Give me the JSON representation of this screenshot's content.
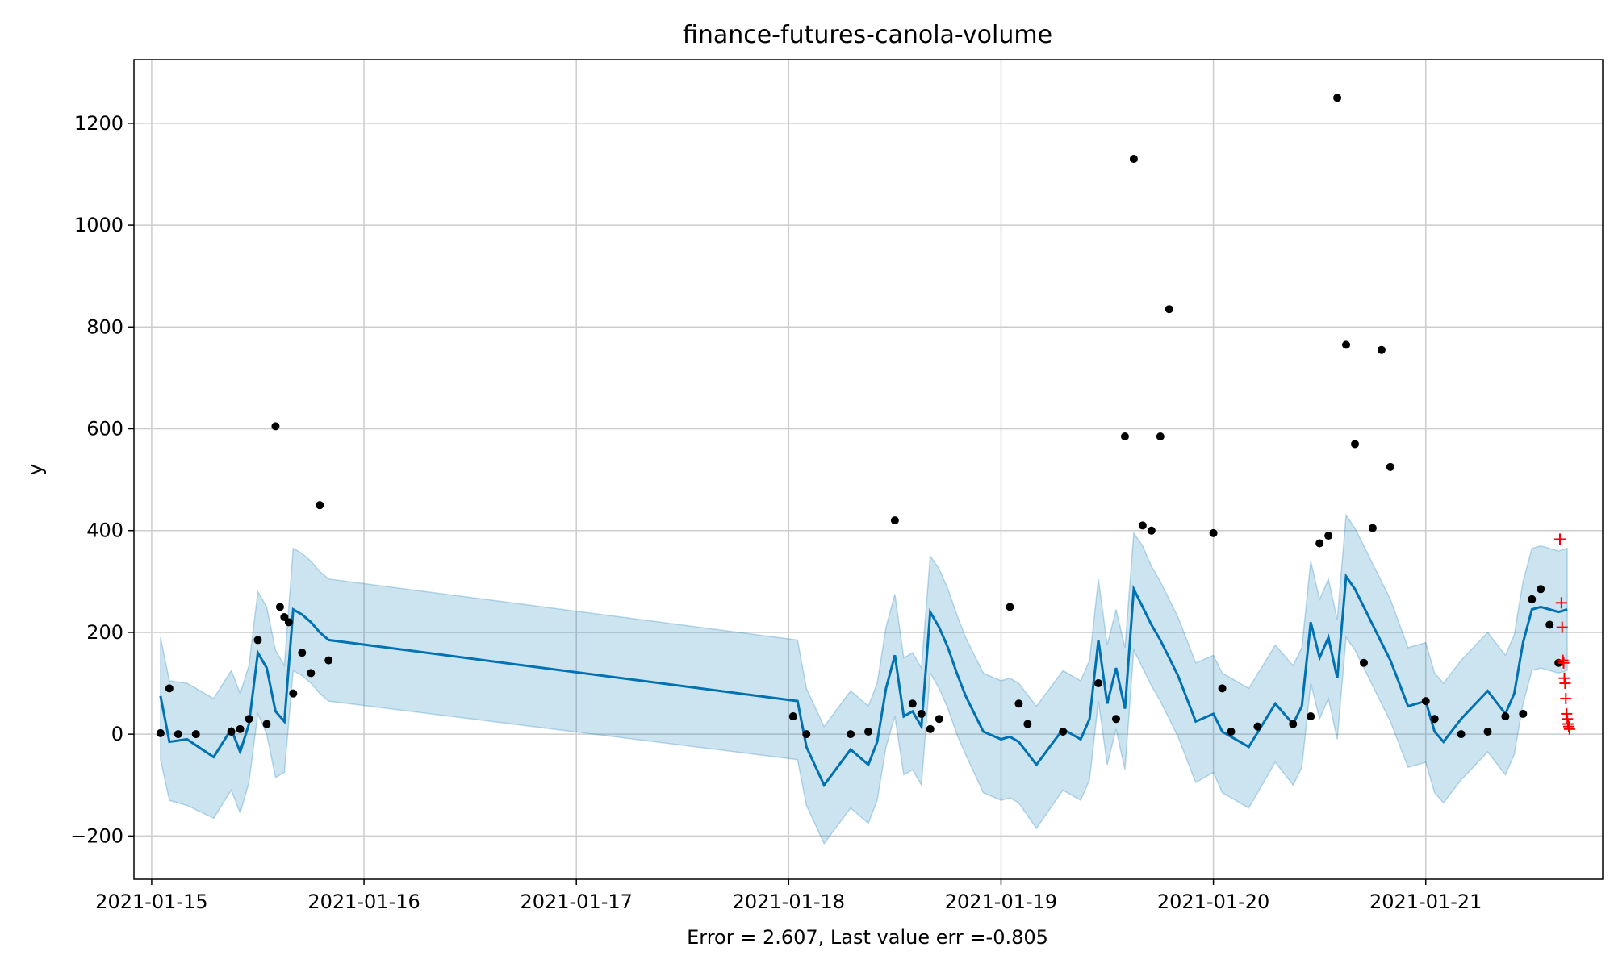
{
  "chart_data": {
    "type": "line",
    "title": "finance-futures-canola-volume",
    "xlabel": "Error = 2.607, Last value err =-0.805",
    "ylabel": "y",
    "xlim": [
      "2021-01-14T22:00",
      "2021-01-21T20:00"
    ],
    "ylim": [
      -285,
      1325
    ],
    "x_ticks": [
      "2021-01-15",
      "2021-01-16",
      "2021-01-17",
      "2021-01-18",
      "2021-01-19",
      "2021-01-20",
      "2021-01-21"
    ],
    "y_ticks": [
      -200,
      0,
      200,
      400,
      600,
      800,
      1000,
      1200
    ],
    "grid": true,
    "colors": {
      "forecast_line": "#0072b2",
      "uncertainty_band": "#0072b2",
      "observed": "#000000",
      "holdout": "#ff0000",
      "grid": "#cccccc"
    },
    "forecast": {
      "name": "",
      "x": [
        "2021-01-15T01:00",
        "2021-01-15T02:00",
        "2021-01-15T04:00",
        "2021-01-15T07:00",
        "2021-01-15T09:00",
        "2021-01-15T10:00",
        "2021-01-15T11:00",
        "2021-01-15T12:00",
        "2021-01-15T13:00",
        "2021-01-15T14:00",
        "2021-01-15T15:00",
        "2021-01-15T16:00",
        "2021-01-15T17:00",
        "2021-01-15T18:00",
        "2021-01-15T19:00",
        "2021-01-15T20:00",
        "2021-01-18T01:00",
        "2021-01-18T02:00",
        "2021-01-18T04:00",
        "2021-01-18T07:00",
        "2021-01-18T09:00",
        "2021-01-18T10:00",
        "2021-01-18T11:00",
        "2021-01-18T12:00",
        "2021-01-18T13:00",
        "2021-01-18T14:00",
        "2021-01-18T15:00",
        "2021-01-18T16:00",
        "2021-01-18T17:00",
        "2021-01-18T18:00",
        "2021-01-18T19:00",
        "2021-01-18T20:00",
        "2021-01-18T22:00",
        "2021-01-19T00:00",
        "2021-01-19T01:00",
        "2021-01-19T02:00",
        "2021-01-19T04:00",
        "2021-01-19T07:00",
        "2021-01-19T09:00",
        "2021-01-19T10:00",
        "2021-01-19T11:00",
        "2021-01-19T12:00",
        "2021-01-19T13:00",
        "2021-01-19T14:00",
        "2021-01-19T15:00",
        "2021-01-19T16:00",
        "2021-01-19T17:00",
        "2021-01-19T18:00",
        "2021-01-19T19:00",
        "2021-01-19T20:00",
        "2021-01-19T22:00",
        "2021-01-20T00:00",
        "2021-01-20T01:00",
        "2021-01-20T02:00",
        "2021-01-20T04:00",
        "2021-01-20T07:00",
        "2021-01-20T09:00",
        "2021-01-20T10:00",
        "2021-01-20T11:00",
        "2021-01-20T12:00",
        "2021-01-20T13:00",
        "2021-01-20T14:00",
        "2021-01-20T15:00",
        "2021-01-20T16:00",
        "2021-01-20T17:00",
        "2021-01-20T18:00",
        "2021-01-20T19:00",
        "2021-01-20T20:00",
        "2021-01-20T22:00",
        "2021-01-21T00:00",
        "2021-01-21T01:00",
        "2021-01-21T02:00",
        "2021-01-21T04:00",
        "2021-01-21T07:00",
        "2021-01-21T09:00",
        "2021-01-21T10:00",
        "2021-01-21T11:00",
        "2021-01-21T12:00",
        "2021-01-21T13:00",
        "2021-01-21T14:00",
        "2021-01-21T15:00",
        "2021-01-21T16:00"
      ],
      "yhat": [
        75,
        -15,
        -10,
        -45,
        10,
        -35,
        20,
        160,
        130,
        45,
        25,
        245,
        235,
        220,
        200,
        185,
        65,
        -25,
        -100,
        -30,
        -60,
        -15,
        90,
        155,
        35,
        45,
        15,
        240,
        210,
        170,
        120,
        75,
        5,
        -10,
        -5,
        -15,
        -60,
        10,
        -10,
        30,
        185,
        60,
        130,
        50,
        285,
        250,
        215,
        185,
        150,
        115,
        25,
        40,
        5,
        -5,
        -25,
        60,
        20,
        55,
        220,
        150,
        190,
        110,
        310,
        285,
        250,
        215,
        180,
        145,
        55,
        65,
        5,
        -15,
        30,
        85,
        40,
        80,
        180,
        245,
        250,
        245,
        240,
        245
      ],
      "yhat_lower": [
        -50,
        -130,
        -140,
        -165,
        -110,
        -155,
        -95,
        40,
        0,
        -85,
        -75,
        125,
        115,
        100,
        80,
        65,
        -50,
        -140,
        -215,
        -145,
        -175,
        -130,
        -25,
        35,
        -80,
        -70,
        -100,
        120,
        90,
        50,
        0,
        -40,
        -115,
        -130,
        -125,
        -135,
        -185,
        -110,
        -130,
        -90,
        65,
        -60,
        10,
        -70,
        165,
        130,
        95,
        65,
        30,
        -5,
        -95,
        -75,
        -115,
        -125,
        -145,
        -55,
        -100,
        -65,
        100,
        30,
        70,
        -10,
        190,
        165,
        130,
        95,
        60,
        25,
        -65,
        -55,
        -115,
        -135,
        -90,
        -35,
        -80,
        -40,
        60,
        125,
        130,
        125,
        120,
        125
      ],
      "yhat_upper": [
        190,
        105,
        100,
        70,
        125,
        80,
        135,
        280,
        250,
        165,
        135,
        365,
        355,
        340,
        320,
        305,
        185,
        90,
        15,
        85,
        55,
        100,
        210,
        275,
        150,
        160,
        130,
        350,
        325,
        285,
        235,
        190,
        120,
        105,
        110,
        100,
        55,
        125,
        105,
        145,
        305,
        175,
        245,
        170,
        395,
        370,
        330,
        300,
        265,
        230,
        140,
        155,
        120,
        110,
        90,
        175,
        135,
        170,
        340,
        265,
        305,
        225,
        430,
        405,
        370,
        335,
        300,
        265,
        170,
        180,
        120,
        100,
        145,
        200,
        155,
        195,
        300,
        365,
        370,
        365,
        360,
        365
      ]
    },
    "observed": {
      "x": [
        "2021-01-15T01:00",
        "2021-01-15T02:00",
        "2021-01-15T03:00",
        "2021-01-15T05:00",
        "2021-01-15T09:00",
        "2021-01-15T10:00",
        "2021-01-15T11:00",
        "2021-01-15T12:00",
        "2021-01-15T13:00",
        "2021-01-15T14:00",
        "2021-01-15T14:30",
        "2021-01-15T15:00",
        "2021-01-15T15:30",
        "2021-01-15T16:00",
        "2021-01-15T17:00",
        "2021-01-15T18:00",
        "2021-01-15T19:00",
        "2021-01-15T20:00",
        "2021-01-18T00:30",
        "2021-01-18T02:00",
        "2021-01-18T07:00",
        "2021-01-18T09:00",
        "2021-01-18T12:00",
        "2021-01-18T14:00",
        "2021-01-18T15:00",
        "2021-01-18T16:00",
        "2021-01-18T17:00",
        "2021-01-19T01:00",
        "2021-01-19T02:00",
        "2021-01-19T03:00",
        "2021-01-19T07:00",
        "2021-01-19T11:00",
        "2021-01-19T13:00",
        "2021-01-19T14:00",
        "2021-01-19T15:00",
        "2021-01-19T16:00",
        "2021-01-19T17:00",
        "2021-01-19T18:00",
        "2021-01-19T19:00",
        "2021-01-20T00:00",
        "2021-01-20T01:00",
        "2021-01-20T02:00",
        "2021-01-20T05:00",
        "2021-01-20T09:00",
        "2021-01-20T11:00",
        "2021-01-20T12:00",
        "2021-01-20T13:00",
        "2021-01-20T14:00",
        "2021-01-20T15:00",
        "2021-01-20T16:00",
        "2021-01-20T17:00",
        "2021-01-20T18:00",
        "2021-01-20T19:00",
        "2021-01-20T20:00",
        "2021-01-21T00:00",
        "2021-01-21T01:00",
        "2021-01-21T04:00",
        "2021-01-21T07:00",
        "2021-01-21T09:00",
        "2021-01-21T11:00",
        "2021-01-21T12:00",
        "2021-01-21T13:00",
        "2021-01-21T14:00",
        "2021-01-21T15:00"
      ],
      "y": [
        2,
        90,
        0,
        0,
        5,
        10,
        30,
        185,
        20,
        605,
        250,
        230,
        220,
        80,
        160,
        120,
        450,
        145,
        35,
        0,
        0,
        5,
        420,
        60,
        40,
        10,
        30,
        250,
        60,
        20,
        5,
        100,
        30,
        585,
        1130,
        410,
        400,
        585,
        835,
        395,
        90,
        5,
        15,
        20,
        35,
        375,
        390,
        1250,
        765,
        570,
        140,
        405,
        755,
        525,
        65,
        30,
        0,
        5,
        35,
        40,
        265,
        285,
        215,
        140
      ]
    },
    "holdout": {
      "x": [
        "2021-01-21T15:10",
        "2021-01-21T15:20",
        "2021-01-21T15:25",
        "2021-01-21T15:30",
        "2021-01-21T15:35",
        "2021-01-21T15:40",
        "2021-01-21T15:45",
        "2021-01-21T15:50",
        "2021-01-21T15:55",
        "2021-01-21T16:00",
        "2021-01-21T16:05",
        "2021-01-21T16:10",
        "2021-01-21T16:15"
      ],
      "y": [
        383,
        258,
        210,
        145,
        140,
        110,
        100,
        70,
        40,
        30,
        20,
        15,
        10
      ]
    }
  }
}
